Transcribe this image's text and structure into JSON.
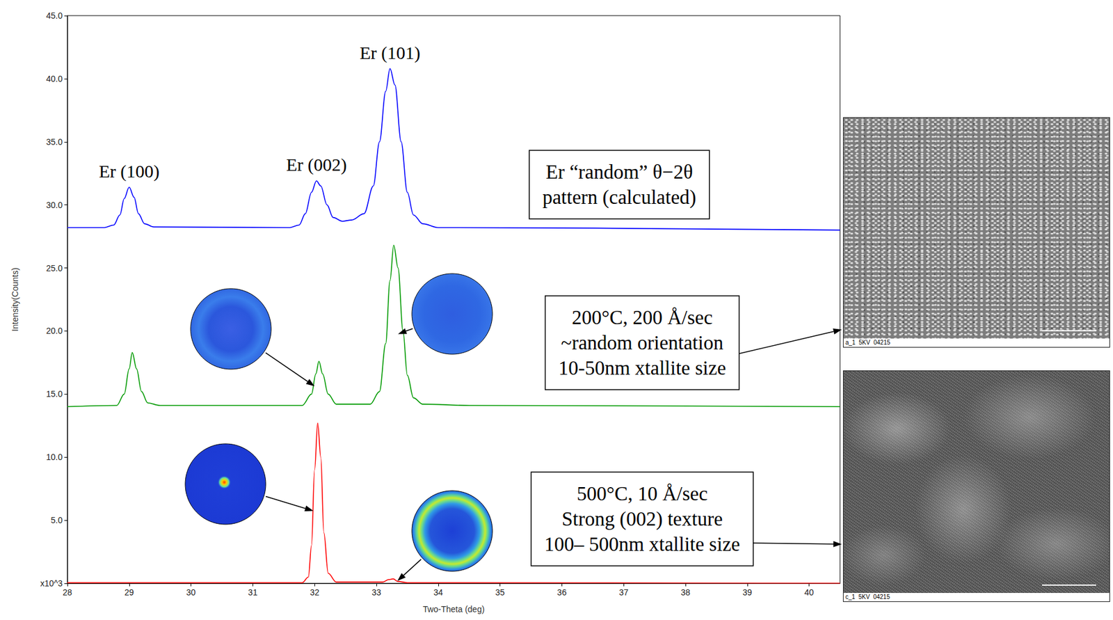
{
  "chart_data": {
    "type": "line",
    "x_label": "Two-Theta (deg)",
    "y_label": "Intensity(Counts)",
    "xlim": [
      28,
      40.5
    ],
    "xticks": [
      28,
      29,
      30,
      31,
      32,
      33,
      34,
      35,
      36,
      37,
      38,
      39,
      40
    ],
    "ylim": [
      0,
      45
    ],
    "yticks": [
      {
        "value": 0,
        "label": "x10^3"
      },
      {
        "value": 5,
        "label": "5.0"
      },
      {
        "value": 10,
        "label": "10.0"
      },
      {
        "value": 15,
        "label": "15.0"
      },
      {
        "value": 20,
        "label": "20.0"
      },
      {
        "value": 25,
        "label": "25.0"
      },
      {
        "value": 30,
        "label": "30.0"
      },
      {
        "value": 35,
        "label": "35.0"
      },
      {
        "value": 40,
        "label": "40.0"
      },
      {
        "value": 45,
        "label": "45.0"
      }
    ],
    "grid": false,
    "series": [
      {
        "color": "#0000ff",
        "x": [
          28.0,
          28.6,
          28.75,
          28.85,
          28.92,
          29.0,
          29.08,
          29.15,
          29.25,
          29.4,
          31.6,
          31.75,
          31.85,
          31.95,
          32.03,
          32.1,
          32.2,
          32.3,
          32.45,
          32.6,
          32.8,
          32.95,
          33.05,
          33.15,
          33.22,
          33.3,
          33.4,
          33.5,
          33.6,
          33.75,
          34.0,
          40.5
        ],
        "values": [
          28.2,
          28.2,
          28.4,
          29.2,
          30.5,
          31.4,
          30.6,
          29.3,
          28.5,
          28.25,
          28.2,
          28.4,
          29.3,
          31.0,
          31.9,
          31.5,
          30.0,
          29.0,
          28.7,
          28.8,
          29.3,
          31.5,
          35.0,
          39.0,
          40.8,
          39.5,
          35.0,
          31.0,
          29.2,
          28.5,
          28.2,
          28.0
        ]
      },
      {
        "color": "#009900",
        "x": [
          28.0,
          28.8,
          28.92,
          29.0,
          29.05,
          29.12,
          29.2,
          29.3,
          29.5,
          31.8,
          31.95,
          32.02,
          32.07,
          32.13,
          32.22,
          32.35,
          32.9,
          33.05,
          33.15,
          33.22,
          33.28,
          33.35,
          33.43,
          33.5,
          33.6,
          33.75,
          34.5,
          40.5
        ],
        "values": [
          14.0,
          14.1,
          15.0,
          17.0,
          18.3,
          17.0,
          15.2,
          14.3,
          14.1,
          14.1,
          15.0,
          16.6,
          17.6,
          16.6,
          15.0,
          14.2,
          14.2,
          15.2,
          19.0,
          24.0,
          26.8,
          25.0,
          20.0,
          16.5,
          14.7,
          14.2,
          14.1,
          14.0
        ]
      },
      {
        "color": "#ff0000",
        "x": [
          28.0,
          31.8,
          31.9,
          31.95,
          32.0,
          32.05,
          32.1,
          32.15,
          32.22,
          32.35,
          33.1,
          33.2,
          33.27,
          33.35,
          33.5,
          40.5
        ],
        "values": [
          0.05,
          0.05,
          0.5,
          3.0,
          9.0,
          12.7,
          10.0,
          4.0,
          0.8,
          0.1,
          0.1,
          0.3,
          0.35,
          0.15,
          0.05,
          0.0
        ]
      }
    ],
    "peaks": [
      {
        "label": "Er (100)",
        "x": 29.0
      },
      {
        "label": "Er (002)",
        "x": 32.03
      },
      {
        "label": "Er (101)",
        "x": 33.22
      }
    ],
    "annotations": [
      {
        "text": [
          "Er “random” θ−2θ",
          "pattern (calculated)"
        ]
      },
      {
        "text": [
          "200°C, 200 Å/sec",
          "~random orientation",
          "10-50nm xtallite size"
        ]
      },
      {
        "text": [
          "500°C, 10 Å/sec",
          "Strong (002) texture",
          "100– 500nm xtallite size"
        ]
      }
    ],
    "images": [
      {
        "caption": "a_1  5KV  04215"
      },
      {
        "caption": "c_1  5KV  04215"
      }
    ]
  }
}
